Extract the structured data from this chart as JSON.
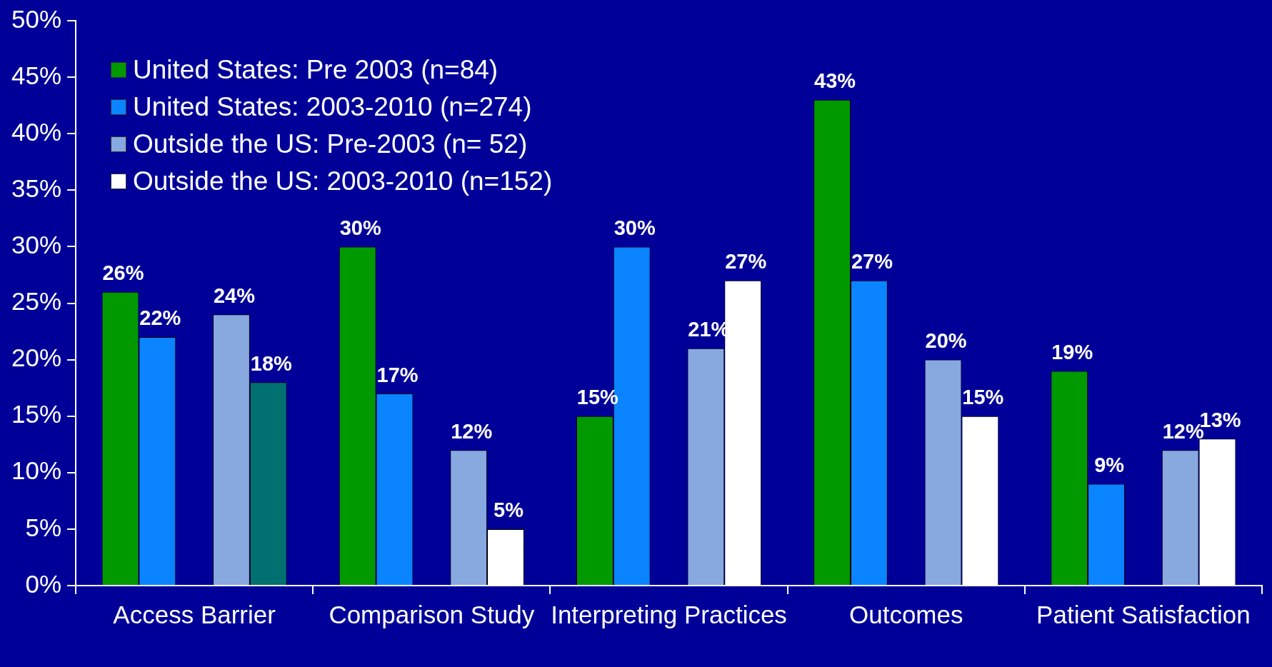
{
  "chart_data": {
    "type": "bar",
    "categories": [
      "Access Barrier",
      "Comparison Study",
      "Interpreting Practices",
      "Outcomes",
      "Patient Satisfaction"
    ],
    "series": [
      {
        "name": "United States: Pre 2003 (n=84)",
        "color": "#009900",
        "values": [
          26,
          30,
          15,
          43,
          19
        ],
        "value_labels": [
          "26%",
          "30%",
          "15%",
          "43%",
          "19%"
        ]
      },
      {
        "name": "United States: 2003-2010 (n=274)",
        "color": "#0a84ff",
        "values": [
          22,
          17,
          30,
          27,
          9
        ],
        "value_labels": [
          "22%",
          "17%",
          "30%",
          "27%",
          "9%"
        ]
      },
      {
        "name": "Outside the US: Pre-2003 (n= 52)",
        "color": "#88a8e0",
        "values": [
          24,
          12,
          21,
          20,
          12
        ],
        "value_labels": [
          "24%",
          "12%",
          "21%",
          "20%",
          "12%"
        ]
      },
      {
        "name": "Outside the US: 2003-2010 (n=152)",
        "color": "#ffffff",
        "colors": [
          "#007070",
          "#ffffff",
          "#ffffff",
          "#ffffff",
          "#ffffff"
        ],
        "values": [
          18,
          5,
          27,
          15,
          13
        ],
        "value_labels": [
          "18%",
          "5%",
          "27%",
          "15%",
          "13%"
        ]
      }
    ],
    "ylim": [
      0,
      50
    ],
    "yticks": [
      {
        "value": 0,
        "label": "0%"
      },
      {
        "value": 5,
        "label": "5%"
      },
      {
        "value": 10,
        "label": "10%"
      },
      {
        "value": 15,
        "label": "15%"
      },
      {
        "value": 20,
        "label": "20%"
      },
      {
        "value": 25,
        "label": "25%"
      },
      {
        "value": 30,
        "label": "30%"
      },
      {
        "value": 35,
        "label": "35%"
      },
      {
        "value": 40,
        "label": "40%"
      },
      {
        "value": 45,
        "label": "45%"
      },
      {
        "value": 50,
        "label": "50%"
      }
    ],
    "grid": false,
    "legend": "top left"
  }
}
